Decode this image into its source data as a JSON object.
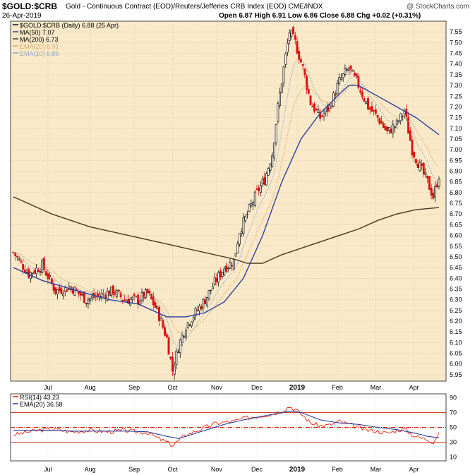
{
  "header": {
    "title": "$GOLD:$CRB",
    "subtitle": "Gold - Continuous Contract (EOD)/Reuters/Jefferies CRB Index (EOD)  CME/INDX",
    "brand": "@ StockCharts.com",
    "date": "26-Apr-2019",
    "ohlc": "Open 6.87  High 6.91  Low 6.86  Close 6.88  Chg +0.02 (+0.31%)"
  },
  "legend": {
    "price": "$GOLD:$CRB (Daily) 6.88 (25 Apr)",
    "ma50": "MA(50) 7.07",
    "ma200": "MA(200) 6.73",
    "ema20": "EMA(20) 6.91",
    "ema10": "EMA(10) 6.86"
  },
  "rsi_legend": {
    "rsi": "RSI(14) 43.23",
    "ema": "EMA(20) 36.58"
  },
  "colors": {
    "price_bg": "#f9e9c8",
    "up": "#111111",
    "down": "#dd1111",
    "ma50": "#2c3ea0",
    "ma200": "#4a3520",
    "ema20": "#d5a86a",
    "ema10": "#8fa8c8",
    "rsi": "#ee2200",
    "rsi_ema": "#2c3ea0",
    "level": "#cc2200"
  },
  "chart_data": [
    {
      "type": "candlestick",
      "title": "$GOLD:$CRB (Daily)",
      "x_ticks": [
        "Jul",
        "Aug",
        "Sep",
        "Oct",
        "Nov",
        "Dec",
        "2019",
        "Feb",
        "Mar",
        "Apr"
      ],
      "ylim": [
        5.92,
        7.6
      ],
      "y_ticks": [
        "5.95",
        "6.00",
        "6.05",
        "6.10",
        "6.15",
        "6.20",
        "6.25",
        "6.30",
        "6.35",
        "6.40",
        "6.45",
        "6.50",
        "6.55",
        "6.60",
        "6.65",
        "6.70",
        "6.75",
        "6.80",
        "6.85",
        "6.90",
        "6.95",
        "7.00",
        "7.05",
        "7.10",
        "7.15",
        "7.20",
        "7.25",
        "7.30",
        "7.35",
        "7.40",
        "7.45",
        "7.50",
        "7.55"
      ],
      "close_anchors": [
        [
          0,
          6.52
        ],
        [
          8,
          6.42
        ],
        [
          15,
          6.46
        ],
        [
          22,
          6.34
        ],
        [
          30,
          6.36
        ],
        [
          38,
          6.3
        ],
        [
          45,
          6.32
        ],
        [
          52,
          6.34
        ],
        [
          58,
          6.3
        ],
        [
          65,
          6.3
        ],
        [
          70,
          6.33
        ],
        [
          75,
          6.25
        ],
        [
          80,
          6.12
        ],
        [
          83,
          5.97
        ],
        [
          86,
          6.08
        ],
        [
          90,
          6.18
        ],
        [
          95,
          6.24
        ],
        [
          100,
          6.3
        ],
        [
          105,
          6.38
        ],
        [
          110,
          6.45
        ],
        [
          115,
          6.48
        ],
        [
          118,
          6.62
        ],
        [
          122,
          6.7
        ],
        [
          127,
          6.8
        ],
        [
          131,
          6.86
        ],
        [
          135,
          6.98
        ],
        [
          138,
          7.2
        ],
        [
          141,
          7.38
        ],
        [
          144,
          7.55
        ],
        [
          147,
          7.5
        ],
        [
          151,
          7.38
        ],
        [
          155,
          7.22
        ],
        [
          160,
          7.15
        ],
        [
          165,
          7.2
        ],
        [
          170,
          7.32
        ],
        [
          175,
          7.38
        ],
        [
          180,
          7.3
        ],
        [
          185,
          7.2
        ],
        [
          190,
          7.15
        ],
        [
          195,
          7.08
        ],
        [
          200,
          7.12
        ],
        [
          204,
          7.18
        ],
        [
          208,
          7
        ],
        [
          212,
          6.92
        ],
        [
          216,
          6.85
        ],
        [
          219,
          6.78
        ],
        [
          222,
          6.88
        ]
      ],
      "ma50": [
        [
          0,
          6.45
        ],
        [
          15,
          6.39
        ],
        [
          30,
          6.35
        ],
        [
          50,
          6.3
        ],
        [
          65,
          6.28
        ],
        [
          80,
          6.22
        ],
        [
          90,
          6.22
        ],
        [
          100,
          6.24
        ],
        [
          110,
          6.29
        ],
        [
          120,
          6.4
        ],
        [
          130,
          6.6
        ],
        [
          140,
          6.85
        ],
        [
          150,
          7.05
        ],
        [
          160,
          7.17
        ],
        [
          170,
          7.26
        ],
        [
          175,
          7.3
        ],
        [
          180,
          7.3
        ],
        [
          190,
          7.25
        ],
        [
          200,
          7.2
        ],
        [
          210,
          7.15
        ],
        [
          222,
          7.07
        ]
      ],
      "ma200": [
        [
          0,
          6.78
        ],
        [
          20,
          6.7
        ],
        [
          40,
          6.64
        ],
        [
          60,
          6.6
        ],
        [
          80,
          6.56
        ],
        [
          100,
          6.52
        ],
        [
          115,
          6.49
        ],
        [
          122,
          6.47
        ],
        [
          130,
          6.47
        ],
        [
          140,
          6.51
        ],
        [
          150,
          6.54
        ],
        [
          160,
          6.57
        ],
        [
          170,
          6.6
        ],
        [
          180,
          6.63
        ],
        [
          190,
          6.67
        ],
        [
          200,
          6.7
        ],
        [
          210,
          6.72
        ],
        [
          222,
          6.73
        ]
      ],
      "ema20_label": "EMA(20) 6.91",
      "ema10_label": "EMA(10) 6.86"
    },
    {
      "type": "line",
      "title": "RSI(14)",
      "ylim": [
        5,
        95
      ],
      "y_ticks": [
        "90",
        "70",
        "50",
        "30",
        "10"
      ],
      "levels": [
        70,
        50,
        30
      ],
      "series": [
        {
          "name": "RSI(14) 43.23",
          "values": [
            [
              0,
              40
            ],
            [
              10,
              45
            ],
            [
              20,
              48
            ],
            [
              30,
              44
            ],
            [
              40,
              46
            ],
            [
              50,
              44
            ],
            [
              58,
              46
            ],
            [
              65,
              44
            ],
            [
              70,
              43
            ],
            [
              75,
              36
            ],
            [
              80,
              30
            ],
            [
              83,
              26
            ],
            [
              86,
              32
            ],
            [
              90,
              40
            ],
            [
              95,
              45
            ],
            [
              100,
              50
            ],
            [
              105,
              55
            ],
            [
              110,
              57
            ],
            [
              115,
              58
            ],
            [
              120,
              62
            ],
            [
              125,
              64
            ],
            [
              130,
              66
            ],
            [
              135,
              68
            ],
            [
              140,
              72
            ],
            [
              144,
              78
            ],
            [
              147,
              74
            ],
            [
              151,
              66
            ],
            [
              155,
              56
            ],
            [
              160,
              52
            ],
            [
              165,
              53
            ],
            [
              170,
              58
            ],
            [
              175,
              54
            ],
            [
              180,
              50
            ],
            [
              185,
              46
            ],
            [
              190,
              45
            ],
            [
              195,
              42
            ],
            [
              200,
              46
            ],
            [
              204,
              48
            ],
            [
              208,
              40
            ],
            [
              212,
              36
            ],
            [
              216,
              34
            ],
            [
              219,
              30
            ],
            [
              222,
              43
            ]
          ]
        },
        {
          "name": "EMA(20) 36.58",
          "values": [
            [
              0,
              46
            ],
            [
              10,
              46
            ],
            [
              20,
              46
            ],
            [
              30,
              45
            ],
            [
              40,
              45
            ],
            [
              50,
              45
            ],
            [
              60,
              45
            ],
            [
              70,
              44
            ],
            [
              80,
              38
            ],
            [
              86,
              35
            ],
            [
              90,
              38
            ],
            [
              95,
              42
            ],
            [
              100,
              46
            ],
            [
              110,
              54
            ],
            [
              120,
              60
            ],
            [
              130,
              65
            ],
            [
              140,
              70
            ],
            [
              145,
              72
            ],
            [
              150,
              70
            ],
            [
              160,
              60
            ],
            [
              170,
              56
            ],
            [
              180,
              54
            ],
            [
              190,
              50
            ],
            [
              200,
              47
            ],
            [
              210,
              42
            ],
            [
              216,
              38
            ],
            [
              222,
              36
            ]
          ]
        }
      ]
    }
  ]
}
